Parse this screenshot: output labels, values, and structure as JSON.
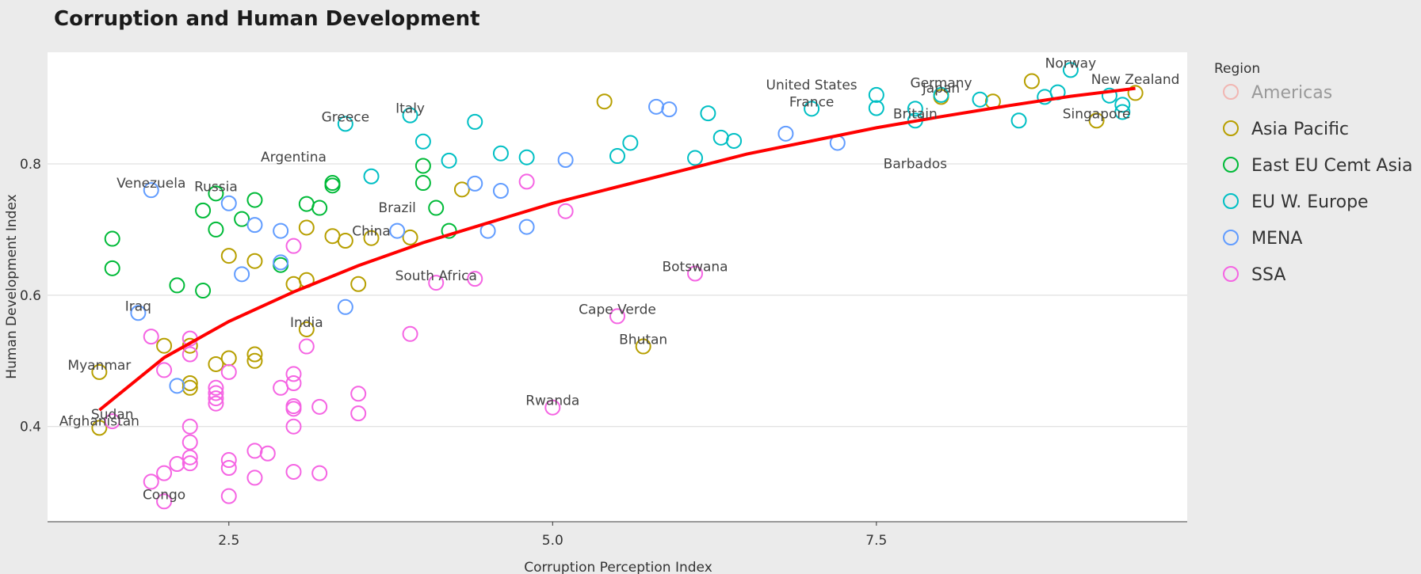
{
  "chart_data": {
    "type": "scatter",
    "title": "Corruption and Human Development",
    "xlabel": "Corruption Perception Index",
    "ylabel": "Human Development Index",
    "xlim": [
      1.1,
      9.9
    ],
    "ylim": [
      0.255,
      0.97
    ],
    "xticks": [
      2.5,
      5.0,
      7.5
    ],
    "xtick_labels": [
      "2.5",
      "5.0",
      "7.5"
    ],
    "yticks": [
      0.4,
      0.6,
      0.8
    ],
    "ytick_labels": [
      "0.4",
      "0.6",
      "0.8"
    ],
    "grid": "horizontal",
    "legend": {
      "title": "Region",
      "placement": "right",
      "entries": [
        {
          "name": "Americas",
          "color": "#f8766d",
          "faded": true
        },
        {
          "name": "Asia Pacific",
          "color": "#b79f00"
        },
        {
          "name": "East EU Cemt Asia",
          "color": "#00ba38"
        },
        {
          "name": "EU W. Europe",
          "color": "#00bfc4"
        },
        {
          "name": "MENA",
          "color": "#619cff"
        },
        {
          "name": "SSA",
          "color": "#f564e3"
        }
      ]
    },
    "trend_line": {
      "color": "#ff0000",
      "x": [
        1.5,
        2.0,
        2.5,
        3.0,
        3.5,
        4.0,
        4.5,
        5.0,
        5.5,
        6.0,
        6.5,
        7.0,
        7.5,
        8.0,
        8.5,
        9.0,
        9.5
      ],
      "y": [
        0.425,
        0.505,
        0.56,
        0.605,
        0.645,
        0.68,
        0.71,
        0.74,
        0.765,
        0.79,
        0.815,
        0.835,
        0.855,
        0.872,
        0.888,
        0.903,
        0.915
      ]
    },
    "series": [
      {
        "name": "Asia Pacific",
        "color": "#b79f00",
        "points": [
          [
            1.5,
            0.483
          ],
          [
            1.5,
            0.398
          ],
          [
            2.0,
            0.523
          ],
          [
            2.2,
            0.466
          ],
          [
            2.2,
            0.459
          ],
          [
            2.2,
            0.523
          ],
          [
            2.4,
            0.495
          ],
          [
            2.5,
            0.504
          ],
          [
            2.5,
            0.66
          ],
          [
            2.7,
            0.51
          ],
          [
            2.7,
            0.5
          ],
          [
            2.7,
            0.652
          ],
          [
            3.0,
            0.617
          ],
          [
            3.1,
            0.623
          ],
          [
            3.1,
            0.548
          ],
          [
            3.1,
            0.703
          ],
          [
            3.3,
            0.69
          ],
          [
            3.4,
            0.683
          ],
          [
            3.5,
            0.617
          ],
          [
            3.6,
            0.687
          ],
          [
            3.9,
            0.688
          ],
          [
            4.3,
            0.761
          ],
          [
            5.4,
            0.895
          ],
          [
            5.7,
            0.522
          ],
          [
            8.0,
            0.902
          ],
          [
            8.4,
            0.895
          ],
          [
            8.7,
            0.926
          ],
          [
            9.2,
            0.866
          ],
          [
            9.5,
            0.908
          ]
        ]
      },
      {
        "name": "East EU Cemt Asia",
        "color": "#00ba38",
        "points": [
          [
            1.6,
            0.686
          ],
          [
            1.6,
            0.641
          ],
          [
            2.1,
            0.615
          ],
          [
            2.3,
            0.729
          ],
          [
            2.3,
            0.607
          ],
          [
            2.4,
            0.7
          ],
          [
            2.4,
            0.755
          ],
          [
            2.6,
            0.716
          ],
          [
            2.7,
            0.745
          ],
          [
            2.9,
            0.646
          ],
          [
            3.1,
            0.739
          ],
          [
            3.2,
            0.733
          ],
          [
            3.3,
            0.767
          ],
          [
            3.3,
            0.771
          ],
          [
            4.0,
            0.797
          ],
          [
            4.0,
            0.771
          ],
          [
            4.1,
            0.733
          ],
          [
            4.2,
            0.698
          ]
        ]
      },
      {
        "name": "EU W. Europe",
        "color": "#00bfc4",
        "points": [
          [
            3.4,
            0.861
          ],
          [
            3.6,
            0.781
          ],
          [
            3.9,
            0.874
          ],
          [
            4.0,
            0.834
          ],
          [
            4.2,
            0.805
          ],
          [
            4.4,
            0.864
          ],
          [
            4.6,
            0.816
          ],
          [
            4.8,
            0.81
          ],
          [
            5.5,
            0.812
          ],
          [
            5.6,
            0.832
          ],
          [
            6.1,
            0.809
          ],
          [
            6.2,
            0.877
          ],
          [
            6.3,
            0.84
          ],
          [
            6.4,
            0.835
          ],
          [
            7.0,
            0.884
          ],
          [
            7.5,
            0.905
          ],
          [
            7.5,
            0.885
          ],
          [
            7.8,
            0.884
          ],
          [
            7.8,
            0.866
          ],
          [
            8.0,
            0.905
          ],
          [
            8.3,
            0.898
          ],
          [
            8.6,
            0.866
          ],
          [
            8.8,
            0.902
          ],
          [
            8.9,
            0.909
          ],
          [
            9.0,
            0.943
          ],
          [
            9.3,
            0.904
          ],
          [
            9.4,
            0.879
          ],
          [
            9.4,
            0.89
          ]
        ]
      },
      {
        "name": "MENA",
        "color": "#619cff",
        "points": [
          [
            1.8,
            0.573
          ],
          [
            1.9,
            0.76
          ],
          [
            2.1,
            0.462
          ],
          [
            2.5,
            0.74
          ],
          [
            2.6,
            0.632
          ],
          [
            2.7,
            0.707
          ],
          [
            2.9,
            0.698
          ],
          [
            2.9,
            0.65
          ],
          [
            3.4,
            0.582
          ],
          [
            3.8,
            0.698
          ],
          [
            4.4,
            0.77
          ],
          [
            4.5,
            0.698
          ],
          [
            4.6,
            0.759
          ],
          [
            4.8,
            0.704
          ],
          [
            5.1,
            0.806
          ],
          [
            5.8,
            0.887
          ],
          [
            5.9,
            0.883
          ],
          [
            6.8,
            0.846
          ],
          [
            7.2,
            0.832
          ]
        ]
      },
      {
        "name": "SSA",
        "color": "#f564e3",
        "points": [
          [
            1.6,
            0.408
          ],
          [
            1.9,
            0.537
          ],
          [
            1.9,
            0.316
          ],
          [
            2.0,
            0.486
          ],
          [
            2.0,
            0.329
          ],
          [
            2.0,
            0.286
          ],
          [
            2.1,
            0.343
          ],
          [
            2.2,
            0.534
          ],
          [
            2.2,
            0.51
          ],
          [
            2.2,
            0.4
          ],
          [
            2.2,
            0.376
          ],
          [
            2.2,
            0.353
          ],
          [
            2.2,
            0.344
          ],
          [
            2.4,
            0.459
          ],
          [
            2.4,
            0.451
          ],
          [
            2.4,
            0.443
          ],
          [
            2.4,
            0.435
          ],
          [
            2.5,
            0.483
          ],
          [
            2.5,
            0.349
          ],
          [
            2.5,
            0.337
          ],
          [
            2.5,
            0.294
          ],
          [
            2.7,
            0.363
          ],
          [
            2.7,
            0.322
          ],
          [
            2.8,
            0.359
          ],
          [
            2.9,
            0.459
          ],
          [
            3.0,
            0.675
          ],
          [
            3.0,
            0.48
          ],
          [
            3.0,
            0.466
          ],
          [
            3.0,
            0.431
          ],
          [
            3.0,
            0.427
          ],
          [
            3.0,
            0.4
          ],
          [
            3.0,
            0.331
          ],
          [
            3.1,
            0.522
          ],
          [
            3.2,
            0.43
          ],
          [
            3.2,
            0.329
          ],
          [
            3.5,
            0.45
          ],
          [
            3.5,
            0.42
          ],
          [
            3.9,
            0.541
          ],
          [
            4.1,
            0.619
          ],
          [
            4.4,
            0.625
          ],
          [
            4.8,
            0.773
          ],
          [
            5.0,
            0.429
          ],
          [
            5.1,
            0.728
          ],
          [
            5.5,
            0.568
          ],
          [
            6.1,
            0.633
          ]
        ]
      }
    ],
    "annotations": [
      {
        "text": "Myanmar",
        "x": 1.5,
        "y": 0.483
      },
      {
        "text": "Sudan",
        "x": 1.6,
        "y": 0.408
      },
      {
        "text": "Afghanistan",
        "x": 1.5,
        "y": 0.398
      },
      {
        "text": "Congo",
        "x": 2.0,
        "y": 0.286
      },
      {
        "text": "Iraq",
        "x": 1.8,
        "y": 0.573
      },
      {
        "text": "Venezuela",
        "x": 1.9,
        "y": 0.76
      },
      {
        "text": "Russia",
        "x": 2.4,
        "y": 0.755
      },
      {
        "text": "Argentina",
        "x": 3.0,
        "y": 0.8
      },
      {
        "text": "Greece",
        "x": 3.4,
        "y": 0.861
      },
      {
        "text": "Italy",
        "x": 3.9,
        "y": 0.874
      },
      {
        "text": "Brazil",
        "x": 3.8,
        "y": 0.723
      },
      {
        "text": "China",
        "x": 3.6,
        "y": 0.687
      },
      {
        "text": "India",
        "x": 3.1,
        "y": 0.548
      },
      {
        "text": "South Africa",
        "x": 4.1,
        "y": 0.619
      },
      {
        "text": "Rwanda",
        "x": 5.0,
        "y": 0.429
      },
      {
        "text": "Cape Verde",
        "x": 5.5,
        "y": 0.568
      },
      {
        "text": "Bhutan",
        "x": 5.7,
        "y": 0.522
      },
      {
        "text": "Botswana",
        "x": 6.1,
        "y": 0.633
      },
      {
        "text": "United States",
        "x": 7.0,
        "y": 0.91
      },
      {
        "text": "France",
        "x": 7.0,
        "y": 0.884
      },
      {
        "text": "Britain",
        "x": 7.8,
        "y": 0.866
      },
      {
        "text": "Germany",
        "x": 8.0,
        "y": 0.913
      },
      {
        "text": "Japan",
        "x": 8.0,
        "y": 0.905
      },
      {
        "text": "Barbados",
        "x": 7.8,
        "y": 0.79
      },
      {
        "text": "Norway",
        "x": 9.0,
        "y": 0.943
      },
      {
        "text": "New Zealand",
        "x": 9.5,
        "y": 0.918
      },
      {
        "text": "Singapore",
        "x": 9.2,
        "y": 0.866
      }
    ]
  }
}
